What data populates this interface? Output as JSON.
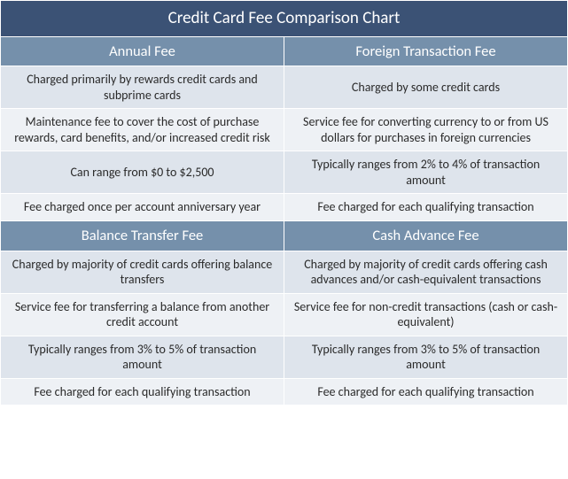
{
  "title": "Credit Card Fee Comparison Chart",
  "sections": [
    {
      "left_header": "Annual Fee",
      "right_header": "Foreign Transaction Fee",
      "rows": [
        {
          "left": "Charged primarily by rewards credit cards and subprime cards",
          "right": "Charged by some credit cards"
        },
        {
          "left": "Maintenance fee to cover the cost of purchase rewards, card benefits, and/or increased credit risk",
          "right": "Service fee for converting currency to or from US dollars for purchases in foreign currencies"
        },
        {
          "left": "Can range from $0 to $2,500",
          "right": "Typically ranges from 2% to 4% of transaction amount"
        },
        {
          "left": "Fee charged once per account anniversary year",
          "right": "Fee charged for each qualifying transaction"
        }
      ]
    },
    {
      "left_header": "Balance Transfer Fee",
      "right_header": "Cash Advance Fee",
      "rows": [
        {
          "left": "Charged by majority of credit cards offering balance transfers",
          "right": "Charged by majority of credit cards offering cash advances and/or cash-equivalent transactions"
        },
        {
          "left": "Service fee for transferring a balance from another credit account",
          "right": "Service fee for non-credit transactions (cash or cash-equivalent)"
        },
        {
          "left": "Typically ranges from 3% to 5% of transaction amount",
          "right": "Typically ranges from 3% to 5% of transaction amount"
        },
        {
          "left": "Fee charged for each qualifying transaction",
          "right": "Fee charged for each qualifying transaction"
        }
      ]
    }
  ],
  "colors": {
    "title_bg": "#3b5275",
    "header_bg": "#7590ab",
    "row_light": "#dee4ec",
    "row_lighter": "#eef1f5",
    "border": "#ffffff",
    "title_text": "#ffffff",
    "header_text": "#ffffff",
    "body_text": "#2a2a2a"
  },
  "typography": {
    "title_fontsize": 19,
    "header_fontsize": 16.5,
    "body_fontsize": 14,
    "font_family": "Calibri"
  }
}
